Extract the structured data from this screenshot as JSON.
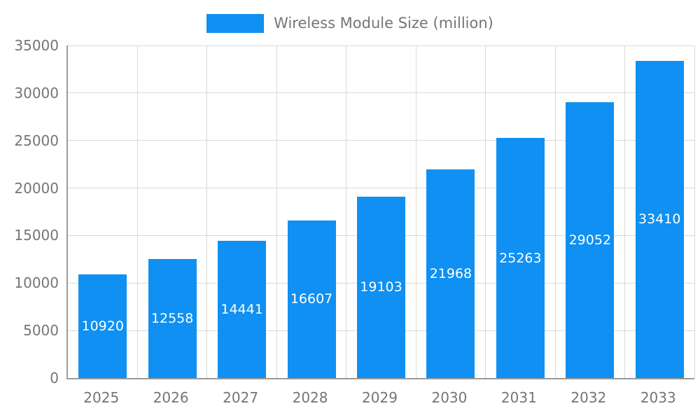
{
  "chart_data": {
    "type": "bar",
    "title": "Wireless Module Size (million)",
    "categories": [
      "2025",
      "2026",
      "2027",
      "2028",
      "2029",
      "2030",
      "2031",
      "2032",
      "2033"
    ],
    "values": [
      10920,
      12558,
      14441,
      16607,
      19103,
      21968,
      25263,
      29052,
      33410
    ],
    "xlabel": "",
    "ylabel": "",
    "ylim": [
      0,
      35000
    ],
    "ytick_step": 5000,
    "grid": true,
    "legend_position": "top",
    "colors": {
      "bar": "#0f90f2",
      "value_label": "#ffffff",
      "axis_text": "#757575",
      "grid_line": "#d9d9d9",
      "axis_line": "#9a9a9a",
      "background": "#ffffff"
    }
  }
}
